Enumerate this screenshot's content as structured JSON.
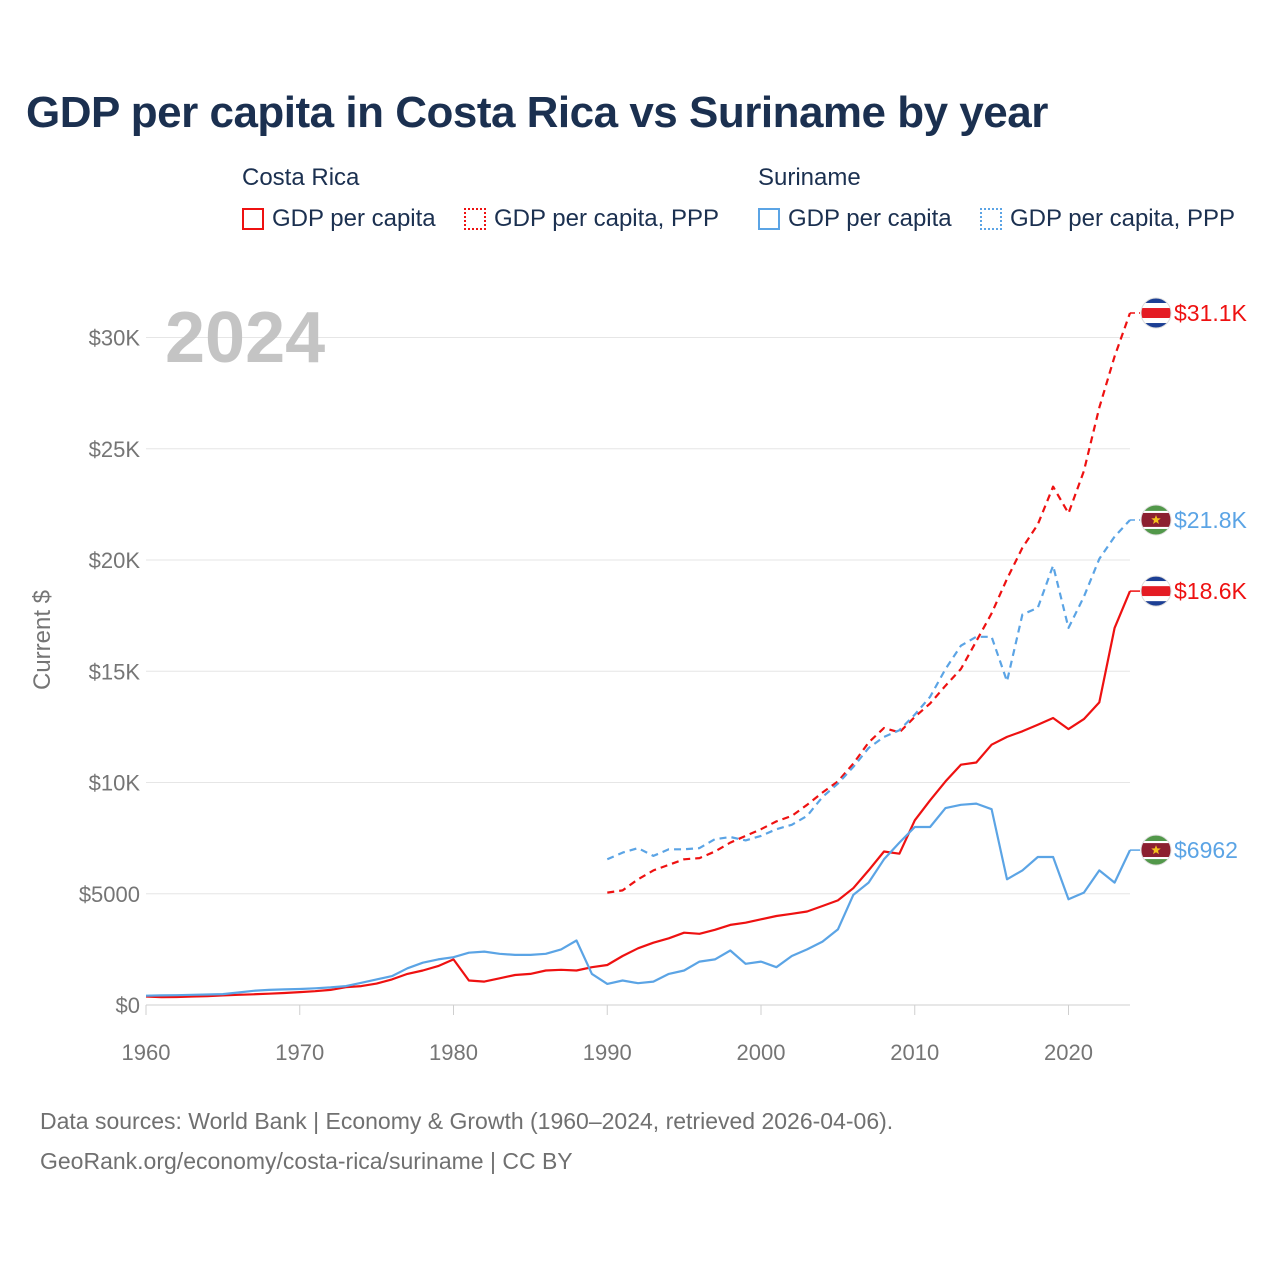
{
  "title": "GDP per capita in Costa Rica vs Suriname by year",
  "legend": {
    "countries": [
      {
        "name": "Costa Rica",
        "color": "#ee1111",
        "items": [
          {
            "label": "GDP per capita",
            "style": "solid"
          },
          {
            "label": "GDP per capita, PPP",
            "style": "dotted"
          }
        ]
      },
      {
        "name": "Suriname",
        "color": "#5ba4e5",
        "items": [
          {
            "label": "GDP per capita",
            "style": "solid"
          },
          {
            "label": "GDP per capita, PPP",
            "style": "dotted"
          }
        ]
      }
    ]
  },
  "year_watermark": "2024",
  "chart_data": {
    "type": "line",
    "title": "GDP per capita in Costa Rica vs Suriname by year",
    "xlabel": "",
    "ylabel": "Current $",
    "xlim": [
      1960,
      2024
    ],
    "ylim": [
      0,
      32000
    ],
    "x_ticks": [
      1960,
      1970,
      1980,
      1990,
      2000,
      2010,
      2020
    ],
    "y_ticks": [
      0,
      5000,
      10000,
      15000,
      20000,
      25000,
      30000
    ],
    "y_tick_labels": [
      "$0",
      "$5000",
      "$10K",
      "$15K",
      "$20K",
      "$25K",
      "$30K"
    ],
    "grid": true,
    "series": [
      {
        "name": "Costa Rica GDP per capita",
        "country": "Costa Rica",
        "color": "#ee1111",
        "dash": "solid",
        "end_label": "$18.6K",
        "flag": "costa-rica",
        "x_start": 1960,
        "values": [
          380,
          350,
          360,
          380,
          400,
          430,
          460,
          480,
          510,
          540,
          580,
          620,
          680,
          800,
          850,
          960,
          1150,
          1400,
          1550,
          1750,
          2050,
          1100,
          1050,
          1200,
          1350,
          1400,
          1550,
          1580,
          1550,
          1700,
          1800,
          2200,
          2550,
          2800,
          3000,
          3250,
          3200,
          3380,
          3600,
          3700,
          3850,
          4000,
          4100,
          4200,
          4450,
          4700,
          5250,
          6050,
          6900,
          6800,
          8300,
          9200,
          10050,
          10800,
          10900,
          11700,
          12050,
          12300,
          12600,
          12900,
          12400,
          12850,
          13600,
          16950,
          18600
        ]
      },
      {
        "name": "Costa Rica GDP per capita, PPP",
        "country": "Costa Rica",
        "color": "#ee1111",
        "dash": "dashed",
        "end_label": "$31.1K",
        "flag": "costa-rica",
        "x_start": 1990,
        "values": [
          5050,
          5150,
          5650,
          6050,
          6300,
          6550,
          6600,
          6900,
          7300,
          7600,
          7900,
          8250,
          8500,
          9000,
          9550,
          10050,
          10850,
          11800,
          12450,
          12250,
          12950,
          13550,
          14350,
          15100,
          16350,
          17600,
          19150,
          20550,
          21600,
          23300,
          22100,
          24000,
          26850,
          29150,
          31100
        ]
      },
      {
        "name": "Suriname GDP per capita",
        "country": "Suriname",
        "color": "#5ba4e5",
        "dash": "solid",
        "end_label": "$6962",
        "flag": "suriname",
        "x_start": 1960,
        "values": [
          420,
          430,
          440,
          460,
          470,
          490,
          560,
          640,
          680,
          700,
          720,
          750,
          790,
          850,
          1000,
          1150,
          1300,
          1650,
          1900,
          2050,
          2150,
          2350,
          2400,
          2300,
          2250,
          2250,
          2300,
          2500,
          2900,
          1400,
          950,
          1100,
          980,
          1050,
          1400,
          1550,
          1950,
          2050,
          2450,
          1850,
          1950,
          1700,
          2200,
          2500,
          2850,
          3400,
          4950,
          5500,
          6550,
          7300,
          8000,
          8000,
          8850,
          9000,
          9050,
          8800,
          5650,
          6050,
          6650,
          6650,
          4750,
          5050,
          6050,
          5500,
          6962
        ]
      },
      {
        "name": "Suriname GDP per capita, PPP",
        "country": "Suriname",
        "color": "#5ba4e5",
        "dash": "dashed",
        "end_label": "$21.8K",
        "flag": "suriname",
        "x_start": 1990,
        "values": [
          6550,
          6850,
          7050,
          6700,
          7000,
          7000,
          7050,
          7450,
          7550,
          7400,
          7600,
          7900,
          8100,
          8500,
          9350,
          9950,
          10700,
          11550,
          12050,
          12350,
          13050,
          13850,
          15100,
          16150,
          16550,
          16550,
          14550,
          17550,
          17850,
          19750,
          16950,
          18350,
          20050,
          21050,
          21800
        ]
      }
    ]
  },
  "footer": {
    "line1": "Data sources: World Bank | Economy & Growth (1960–2024, retrieved 2026-04-06).",
    "line2": "GeoRank.org/economy/costa-rica/suriname | CC BY"
  }
}
